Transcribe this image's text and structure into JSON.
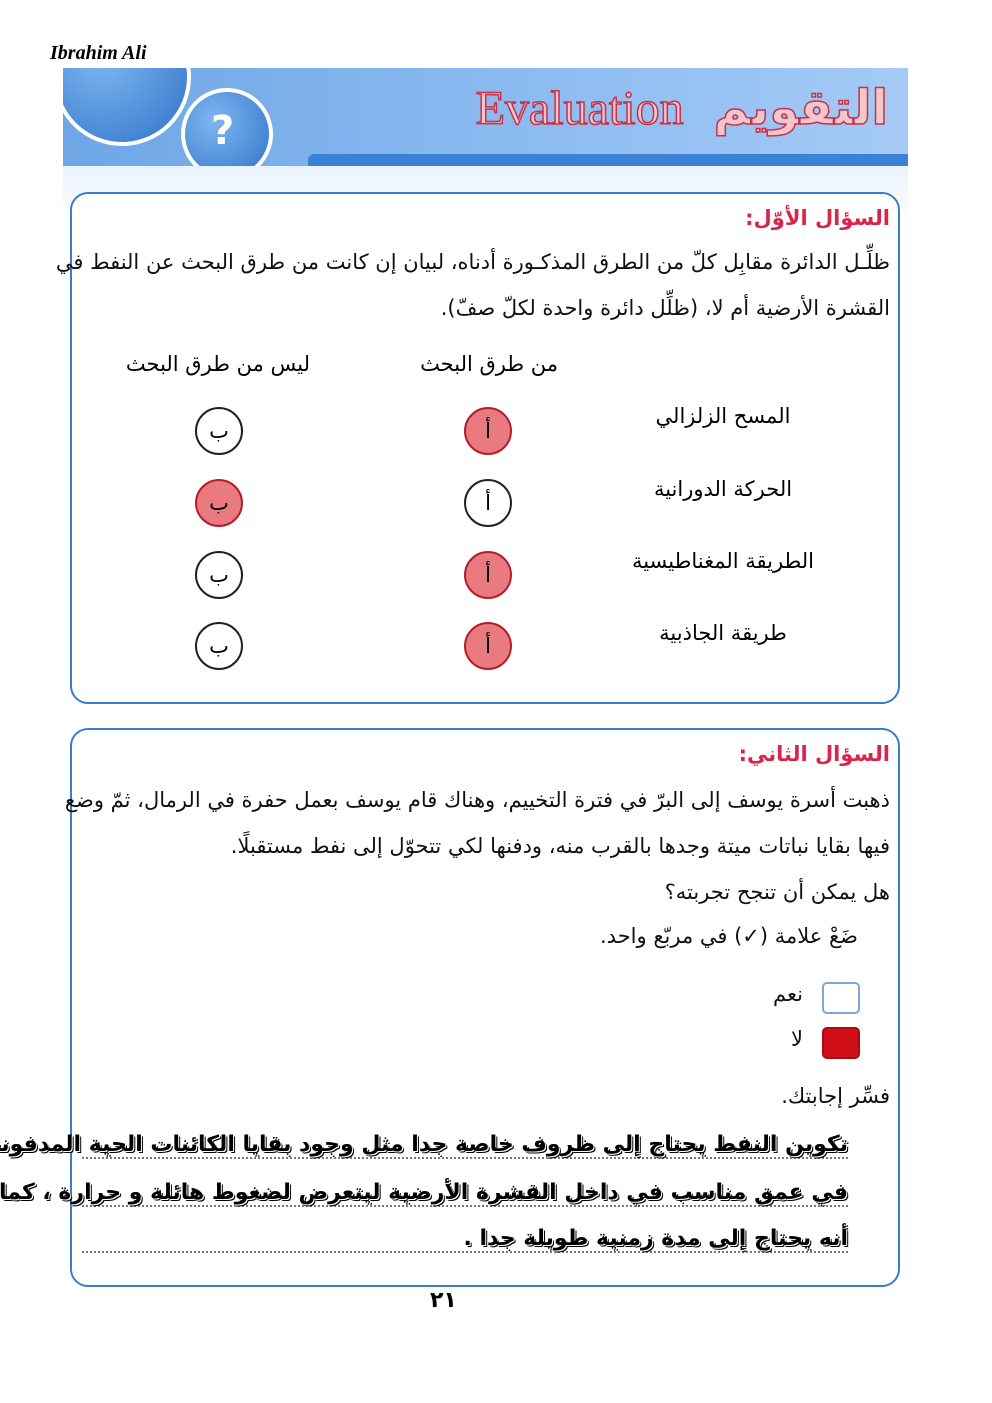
{
  "author": "Ibrahim Ali",
  "banner": {
    "title_en": "Evaluation",
    "title_ar": "التقويم"
  },
  "q1": {
    "title": "السؤال الأوّل:",
    "instruction_1": "ظلِّـل الدائرة مقابِل كلّ من الطرق المذكـورة أدناه، لبيان إن كانت من طرق البحث عن النفط في",
    "instruction_2": "القشرة الأرضية أم لا، (ظلِّل دائرة واحدة لكلّ صفّ).",
    "col_yes": "من طرق البحث",
    "col_no": "ليس من طرق البحث",
    "rows": [
      {
        "label": "المسح الزلزالي",
        "a": "أ",
        "b": "ب",
        "selected": "a"
      },
      {
        "label": "الحركة الدورانية",
        "a": "أ",
        "b": "ب",
        "selected": "b"
      },
      {
        "label": "الطريقة المغناطيسية",
        "a": "أ",
        "b": "ب",
        "selected": "a"
      },
      {
        "label": "طريقة الجاذبية",
        "a": "أ",
        "b": "ب",
        "selected": "a"
      }
    ]
  },
  "q2": {
    "title": "السؤال الثاني:",
    "para_1": "ذهبت أسرة يوسف إلى البرّ في فترة التخييم، وهناك قام يوسف بعمل حفرة في الرمال، ثمّ وضع",
    "para_2": "فيها بقايا نباتات ميتة وجدها بالقرب منه، ودفنها لكي تتحوّل إلى نفط مستقبلًا.",
    "question": "هل يمكن أن تنجح تجربته؟",
    "instruction": "ضَعْ علامة (✓) في مربّع واحد.",
    "options": [
      {
        "label": "نعم",
        "checked": false
      },
      {
        "label": "لا",
        "checked": true
      }
    ],
    "explain_label": "فسِّر إجابتك.",
    "answer_lines": [
      "تكوين النفط يحتاج إلى ظروف خاصة جدا مثل وجود بقايا الكائنات الحية المدفونة",
      "في عمق مناسب في داخل القشرة الأرضية ليتعرض لضغوط هائلة و حرارة ، كما",
      "أنه يحتاج إلى مدة زمنية طويلة جدا ."
    ]
  },
  "page_number": "٢١",
  "colors": {
    "accent_red": "#d8254a",
    "frame_blue": "#3a7cc8",
    "shade": "#e87a80"
  }
}
